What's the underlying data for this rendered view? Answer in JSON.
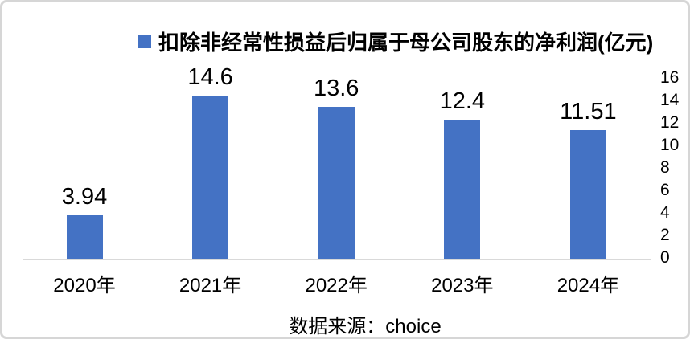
{
  "chart_data": {
    "type": "bar",
    "title": "扣除非经常性损益后归属于母公司股东的净利润(亿元)",
    "legend_label": "扣除非经常性损益后归属于母公司股东的净利润(亿元)",
    "legend_position": "top",
    "categories": [
      "2020年",
      "2021年",
      "2022年",
      "2023年",
      "2024年"
    ],
    "values": [
      3.94,
      14.6,
      13.6,
      12.4,
      11.51
    ],
    "value_labels": [
      "3.94",
      "14.6",
      "13.6",
      "12.4",
      "11.51"
    ],
    "xlabel": "",
    "ylabel": "",
    "ylim": [
      0,
      16
    ],
    "y_ticks": [
      0,
      2,
      4,
      6,
      8,
      10,
      12,
      14,
      16
    ],
    "y_axis_side": "right",
    "grid": false,
    "bar_color": "#4472C4",
    "axis_line_color": "#D9D9D9",
    "text_color": "#000000",
    "frame_border_color": "#D6D6D6"
  },
  "source_text": "数据来源：choice"
}
